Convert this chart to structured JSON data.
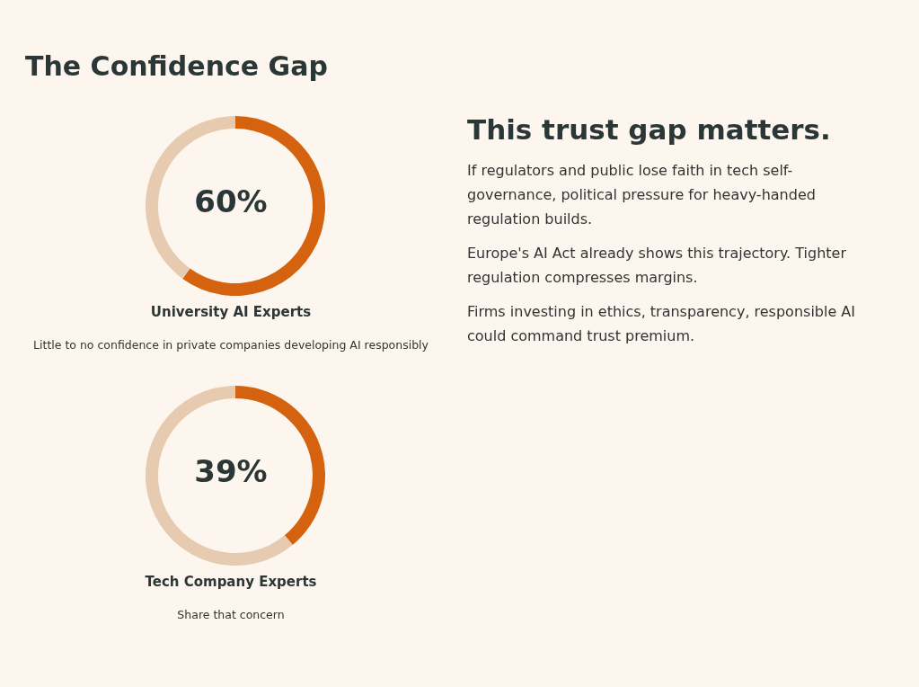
{
  "chart_data": [
    {
      "type": "donut",
      "title": "The Confidence Gap",
      "categories": [
        null,
        null
      ],
      "values": [
        60,
        40
      ],
      "colors": [
        "#d4620f",
        "#e6cbb0"
      ],
      "xlabel": "University AI Experts",
      "annotations": [
        "60%",
        "Little to no confidence in private companies developing AI responsibly"
      ]
    },
    {
      "type": "donut",
      "categories": [
        null,
        null
      ],
      "values": [
        39,
        61
      ],
      "colors": [
        "#d4620f",
        "#e6cbb0"
      ],
      "xlabel": "Tech Company Experts",
      "annotations": [
        "39%",
        "Share that concern"
      ]
    },
    {
      "type": "other",
      "title": "This trust gap matters.",
      "annotations": [
        "If regulators and public lose faith in tech self-governance, political pressure for heavy-handed regulation builds.",
        "Europe's AI Act already shows this trajectory. Tighter regulation compresses margins.",
        "Firms investing in ethics, transparency, responsible AI could command trust premium."
      ]
    }
  ]
}
